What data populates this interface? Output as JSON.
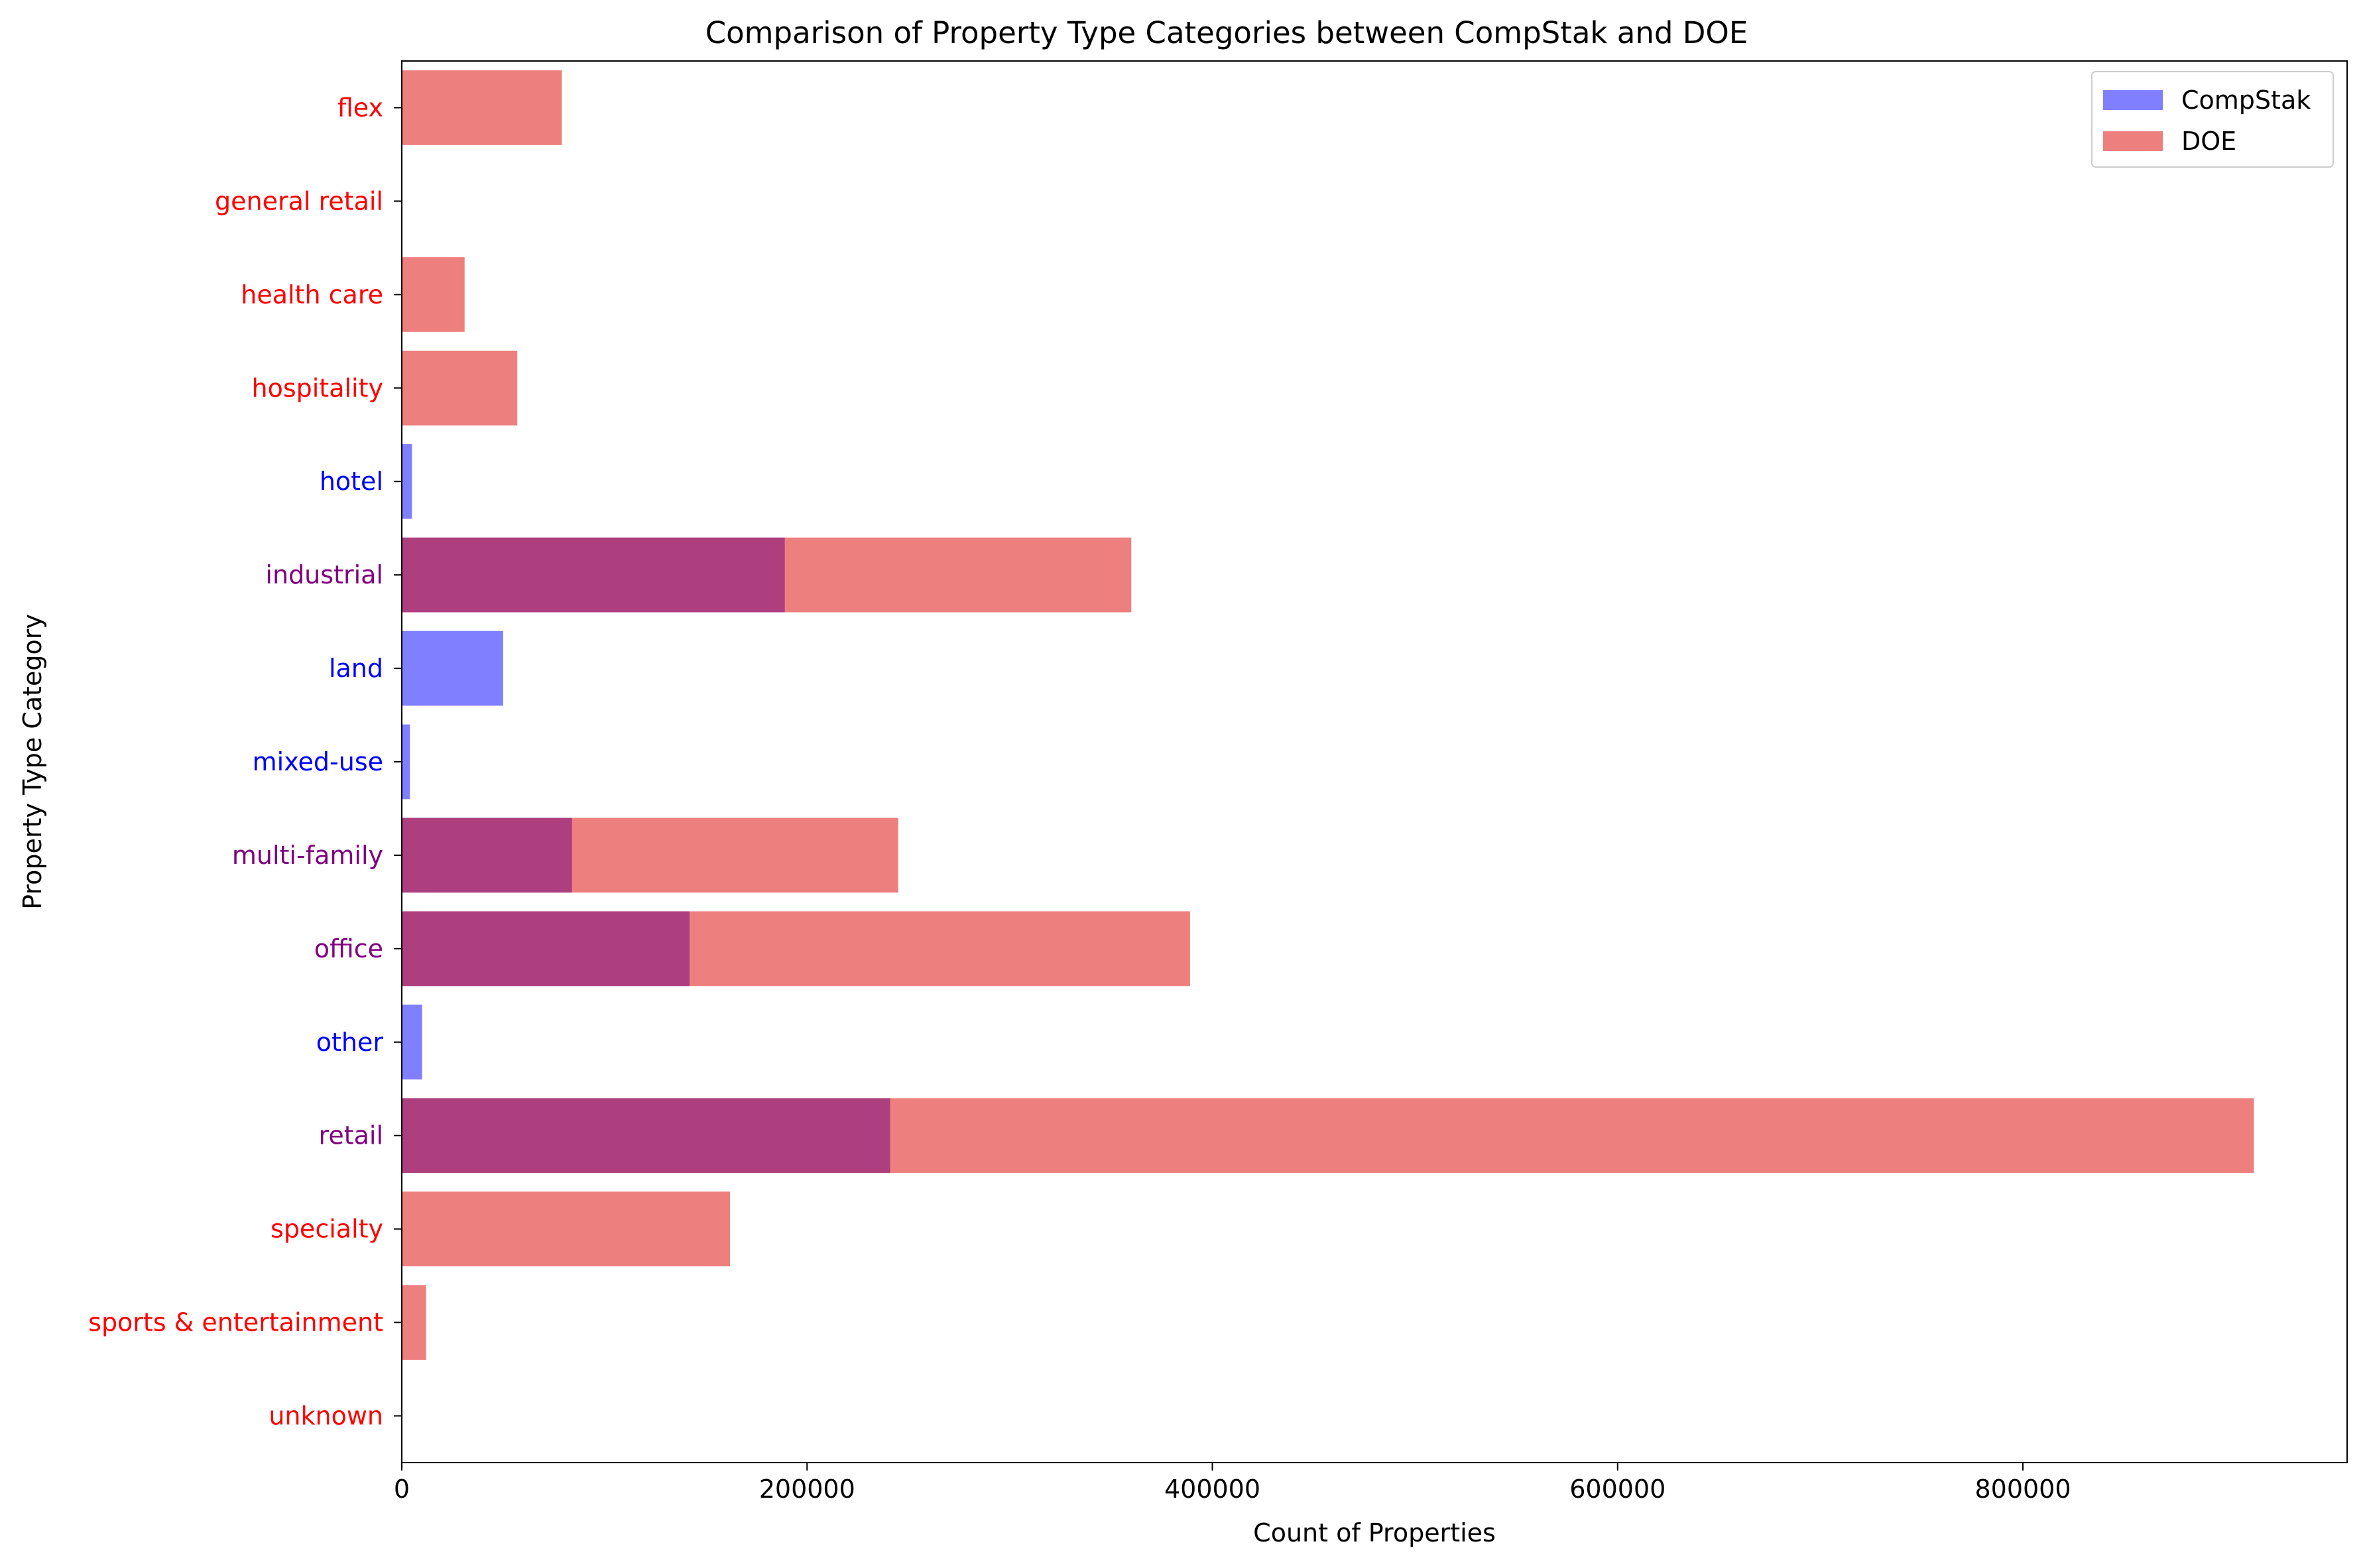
{
  "chart_data": {
    "type": "bar",
    "orientation": "horizontal",
    "title": "Comparison of Property Type Categories between CompStak and DOE",
    "xlabel": "Count of Properties",
    "ylabel": "Property Type Category",
    "xlim": [
      0,
      960000
    ],
    "xticks": [
      0,
      200000,
      400000,
      600000,
      800000
    ],
    "xtick_labels": [
      "0",
      "200000",
      "400000",
      "600000",
      "800000"
    ],
    "grid": false,
    "legend_position": "top-right",
    "categories": [
      "flex",
      "general retail",
      "health care",
      "hospitality",
      "hotel",
      "industrial",
      "land",
      "mixed-use",
      "multi-family",
      "office",
      "other",
      "retail",
      "specialty",
      "sports & entertainment",
      "unknown"
    ],
    "category_label_colors": [
      "#ff0000",
      "#ff0000",
      "#ff0000",
      "#ff0000",
      "#0000ff",
      "#800080",
      "#0000ff",
      "#0000ff",
      "#800080",
      "#800080",
      "#0000ff",
      "#800080",
      "#ff0000",
      "#ff0000",
      "#ff0000"
    ],
    "series": [
      {
        "name": "CompStak",
        "color": "#0000ff",
        "opacity": 0.5,
        "values": [
          0,
          0,
          0,
          0,
          5000,
          189000,
          50000,
          4000,
          84000,
          142000,
          10000,
          241000,
          0,
          0,
          0
        ]
      },
      {
        "name": "DOE",
        "color": "#dd0000",
        "opacity": 0.5,
        "values": [
          79000,
          0,
          31000,
          57000,
          0,
          360000,
          0,
          0,
          245000,
          389000,
          0,
          914000,
          162000,
          12000,
          0
        ]
      }
    ]
  }
}
